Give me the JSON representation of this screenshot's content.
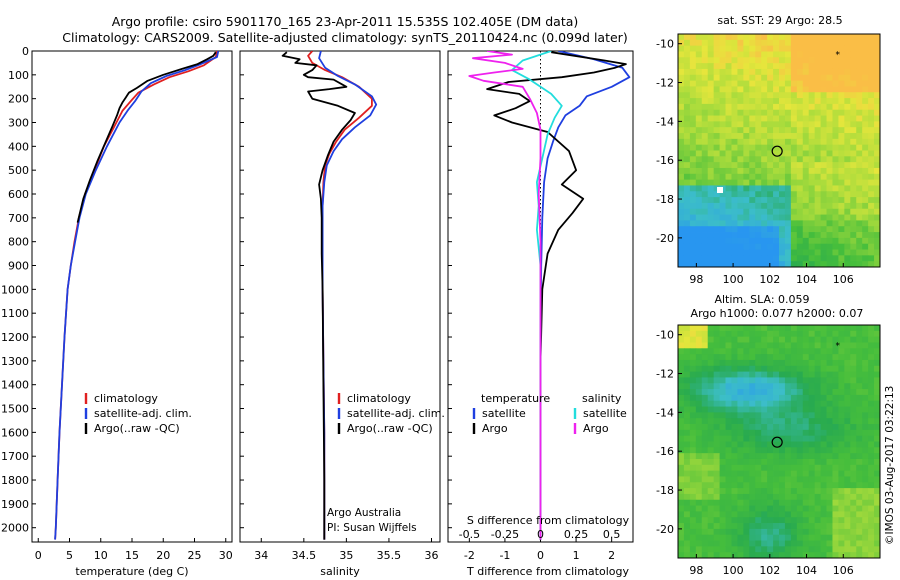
{
  "title_line1": "Argo profile: csiro 5901170_165 23-Apr-2011 15.535S 102.405E (DM data)",
  "title_line2": "Climatology: CARS2009. Satellite-adjusted climatology: synTS_20110424.nc (0.099d later)",
  "side_stamp": "©IMOS 03-Aug-2017 03:22:13",
  "colors": {
    "climatology": "#e02020",
    "satellite": "#1f3fe0",
    "argo": "#000000",
    "sal_satellite": "#22dddd",
    "sal_argo": "#ee22ee"
  },
  "chart_data": [
    {
      "type": "line",
      "id": "temperature",
      "xlabel": "temperature (deg C)",
      "xlim": [
        -1,
        31
      ],
      "xticks": [
        0,
        5,
        10,
        15,
        20,
        25,
        30
      ],
      "ylim": [
        2060,
        0
      ],
      "yticks": [
        0,
        100,
        200,
        300,
        400,
        500,
        600,
        700,
        800,
        900,
        1000,
        1100,
        1200,
        1300,
        1400,
        1500,
        1600,
        1700,
        1800,
        1900,
        2000
      ],
      "legend": [
        "climatology",
        "satellite-adj. clim.",
        "Argo(..raw -QC)"
      ],
      "series": [
        {
          "name": "climatology",
          "color_key": "climatology",
          "points": [
            [
              28.6,
              0
            ],
            [
              28.4,
              25
            ],
            [
              26.5,
              60
            ],
            [
              24,
              85
            ],
            [
              21,
              110
            ],
            [
              18.5,
              140
            ],
            [
              16,
              175
            ],
            [
              14.8,
              210
            ],
            [
              13.5,
              250
            ],
            [
              12.5,
              300
            ],
            [
              10.5,
              400
            ],
            [
              9,
              500
            ],
            [
              7.5,
              600
            ],
            [
              6.5,
              700
            ],
            [
              5.8,
              800
            ],
            [
              5.2,
              900
            ],
            [
              4.7,
              1000
            ],
            [
              4.2,
              1200
            ],
            [
              3.8,
              1400
            ],
            [
              3.4,
              1600
            ],
            [
              3.1,
              1800
            ],
            [
              2.8,
              2000
            ],
            [
              2.7,
              2050
            ]
          ]
        },
        {
          "name": "satellite-adj. clim.",
          "color_key": "satellite",
          "points": [
            [
              28.8,
              0
            ],
            [
              28.6,
              25
            ],
            [
              26,
              55
            ],
            [
              23.5,
              80
            ],
            [
              20.5,
              105
            ],
            [
              18,
              135
            ],
            [
              16.5,
              170
            ],
            [
              15.5,
              210
            ],
            [
              14.3,
              250
            ],
            [
              13,
              300
            ],
            [
              11,
              400
            ],
            [
              9.2,
              500
            ],
            [
              7.6,
              600
            ],
            [
              6.6,
              700
            ],
            [
              5.9,
              800
            ],
            [
              5.2,
              900
            ],
            [
              4.7,
              1000
            ],
            [
              4.2,
              1200
            ],
            [
              3.8,
              1400
            ],
            [
              3.4,
              1600
            ],
            [
              3.1,
              1800
            ],
            [
              2.8,
              2000
            ],
            [
              2.7,
              2050
            ]
          ]
        },
        {
          "name": "Argo(..raw -QC)",
          "color_key": "argo",
          "points": [
            [
              28.4,
              5
            ],
            [
              28,
              20
            ],
            [
              27,
              35
            ],
            [
              25.5,
              55
            ],
            [
              23,
              75
            ],
            [
              20,
              100
            ],
            [
              17.5,
              125
            ],
            [
              15.8,
              155
            ],
            [
              14.5,
              175
            ],
            [
              14,
              195
            ],
            [
              13.5,
              215
            ],
            [
              13,
              240
            ],
            [
              12.6,
              270
            ],
            [
              11.8,
              320
            ],
            [
              10.8,
              380
            ],
            [
              9.5,
              460
            ],
            [
              8.3,
              540
            ],
            [
              7.2,
              620
            ],
            [
              6.3,
              720
            ]
          ]
        }
      ]
    },
    {
      "type": "line",
      "id": "salinity",
      "xlabel": "salinity",
      "xlim": [
        33.75,
        36.1
      ],
      "xticks": [
        34,
        34.5,
        35,
        35.5,
        36
      ],
      "ylim": [
        2060,
        0
      ],
      "legend": [
        "climatology",
        "satellite-adj. clim.",
        "Argo(..raw -QC)"
      ],
      "annotation": [
        "Argo Australia",
        "PI: Susan Wijffels"
      ],
      "series": [
        {
          "name": "climatology",
          "color_key": "climatology",
          "points": [
            [
              34.6,
              0
            ],
            [
              34.55,
              20
            ],
            [
              34.6,
              50
            ],
            [
              34.75,
              80
            ],
            [
              34.95,
              110
            ],
            [
              35.15,
              150
            ],
            [
              35.3,
              200
            ],
            [
              35.3,
              230
            ],
            [
              35.15,
              280
            ],
            [
              34.98,
              330
            ],
            [
              34.88,
              380
            ],
            [
              34.8,
              430
            ],
            [
              34.75,
              480
            ],
            [
              34.73,
              550
            ],
            [
              34.72,
              650
            ],
            [
              34.72,
              800
            ],
            [
              34.72,
              1000
            ],
            [
              34.73,
              1300
            ],
            [
              34.74,
              1600
            ],
            [
              34.74,
              2000
            ],
            [
              34.74,
              2050
            ]
          ]
        },
        {
          "name": "satellite-adj. clim.",
          "color_key": "satellite",
          "points": [
            [
              34.7,
              0
            ],
            [
              34.68,
              30
            ],
            [
              34.75,
              70
            ],
            [
              34.9,
              105
            ],
            [
              35.1,
              140
            ],
            [
              35.3,
              190
            ],
            [
              35.35,
              225
            ],
            [
              35.28,
              270
            ],
            [
              35.1,
              320
            ],
            [
              34.95,
              370
            ],
            [
              34.85,
              420
            ],
            [
              34.77,
              480
            ],
            [
              34.74,
              550
            ],
            [
              34.72,
              650
            ],
            [
              34.72,
              800
            ],
            [
              34.72,
              1000
            ],
            [
              34.73,
              1300
            ],
            [
              34.74,
              1600
            ],
            [
              34.74,
              2000
            ],
            [
              34.74,
              2050
            ]
          ]
        },
        {
          "name": "Argo(..raw -QC)",
          "color_key": "argo",
          "points": [
            [
              34.3,
              5
            ],
            [
              34.25,
              20
            ],
            [
              34.45,
              35
            ],
            [
              34.4,
              50
            ],
            [
              34.65,
              60
            ],
            [
              34.6,
              80
            ],
            [
              34.5,
              100
            ],
            [
              34.55,
              110
            ],
            [
              34.85,
              120
            ],
            [
              35,
              150
            ],
            [
              34.8,
              160
            ],
            [
              34.55,
              170
            ],
            [
              34.6,
              200
            ],
            [
              34.9,
              230
            ],
            [
              35.1,
              260
            ],
            [
              35.05,
              290
            ],
            [
              34.95,
              330
            ],
            [
              34.85,
              380
            ],
            [
              34.78,
              440
            ],
            [
              34.72,
              500
            ],
            [
              34.68,
              560
            ],
            [
              34.7,
              620
            ],
            [
              34.71,
              700
            ],
            [
              34.71,
              850
            ],
            [
              34.72,
              1000
            ],
            [
              34.73,
              1400
            ],
            [
              34.74,
              1800
            ],
            [
              34.74,
              2000
            ],
            [
              34.74,
              2050
            ]
          ]
        }
      ]
    },
    {
      "type": "line",
      "id": "difference",
      "xlabel": "T difference from climatology",
      "xlabel_top": "S difference from climatology",
      "xlim": [
        -2.6,
        2.6
      ],
      "xticks": [
        -2,
        -1,
        0,
        1,
        2
      ],
      "s_xticks_labels": [
        "-0.5",
        "-0.25",
        "0",
        "0.25",
        "0.5"
      ],
      "s_xticks_T": [
        -2,
        -1,
        0,
        1,
        2
      ],
      "ylim": [
        2060,
        0
      ],
      "legend_titles": [
        "temperature",
        "salinity"
      ],
      "legend_temperature": [
        "satellite",
        "Argo"
      ],
      "legend_salinity": [
        "satellite",
        "Argo"
      ],
      "series": [
        {
          "name": "temperature satellite",
          "color_key": "satellite",
          "points": [
            [
              0.5,
              0
            ],
            [
              1.5,
              35
            ],
            [
              2.3,
              70
            ],
            [
              2.5,
              110
            ],
            [
              2.0,
              150
            ],
            [
              1.3,
              190
            ],
            [
              1.1,
              230
            ],
            [
              0.7,
              270
            ],
            [
              0.5,
              320
            ],
            [
              0.35,
              380
            ],
            [
              0.2,
              450
            ],
            [
              0.1,
              550
            ],
            [
              0.05,
              700
            ],
            [
              0.02,
              900
            ],
            [
              0,
              1200
            ],
            [
              0,
              2050
            ]
          ]
        },
        {
          "name": "temperature Argo",
          "color_key": "argo",
          "points": [
            [
              0.3,
              5
            ],
            [
              1.8,
              40
            ],
            [
              2.4,
              55
            ],
            [
              2.1,
              70
            ],
            [
              1.5,
              90
            ],
            [
              0.6,
              110
            ],
            [
              -0.9,
              130
            ],
            [
              -1.5,
              160
            ],
            [
              -0.6,
              180
            ],
            [
              -0.3,
              210
            ],
            [
              -0.7,
              240
            ],
            [
              -1.3,
              270
            ],
            [
              -0.8,
              300
            ],
            [
              0.2,
              340
            ],
            [
              0.8,
              420
            ],
            [
              1.0,
              500
            ],
            [
              0.6,
              560
            ],
            [
              1.2,
              620
            ],
            [
              0.9,
              680
            ],
            [
              0.5,
              750
            ],
            [
              0.2,
              850
            ],
            [
              0.05,
              1000
            ],
            [
              0,
              1300
            ],
            [
              0,
              2050
            ]
          ]
        },
        {
          "name": "salinity satellite",
          "color_key": "sal_satellite",
          "points": [
            [
              0.3,
              0
            ],
            [
              -0.5,
              40
            ],
            [
              -0.8,
              80
            ],
            [
              -0.3,
              120
            ],
            [
              0.3,
              180
            ],
            [
              0.6,
              230
            ],
            [
              0.4,
              280
            ],
            [
              0.2,
              350
            ],
            [
              0.05,
              450
            ],
            [
              -0.1,
              550
            ],
            [
              -0.05,
              650
            ],
            [
              -0.1,
              750
            ],
            [
              0,
              900
            ],
            [
              0,
              2050
            ]
          ]
        },
        {
          "name": "salinity Argo",
          "color_key": "sal_argo",
          "points": [
            [
              -1.5,
              0
            ],
            [
              -0.8,
              15
            ],
            [
              -1.9,
              30
            ],
            [
              -1.0,
              50
            ],
            [
              -0.5,
              75
            ],
            [
              -1.3,
              90
            ],
            [
              -2.0,
              105
            ],
            [
              -1.6,
              125
            ],
            [
              -0.5,
              150
            ],
            [
              -0.3,
              200
            ],
            [
              -0.1,
              260
            ],
            [
              0,
              330
            ],
            [
              0,
              450
            ],
            [
              -0.05,
              600
            ],
            [
              0,
              800
            ],
            [
              0,
              2050
            ]
          ]
        }
      ]
    },
    {
      "type": "heatmap",
      "id": "sst_map",
      "title": "sat. SST: 29 Argo: 28.5",
      "xlim": [
        97,
        108
      ],
      "ylim": [
        -21.5,
        -9.5
      ],
      "xticks": [
        98,
        100,
        102,
        104,
        106
      ],
      "yticks": [
        -10,
        -12,
        -14,
        -16,
        -18,
        -20
      ],
      "profile_marker": [
        102.4,
        -15.535
      ],
      "star_marker": [
        105.7,
        -10.5
      ]
    },
    {
      "type": "heatmap",
      "id": "sla_map",
      "title_line1": "Altim. SLA: 0.059",
      "title_line2": "Argo h1000: 0.077 h2000: 0.07",
      "xlim": [
        97,
        108
      ],
      "ylim": [
        -21.5,
        -9.5
      ],
      "xticks": [
        98,
        100,
        102,
        104,
        106
      ],
      "yticks": [
        -10,
        -12,
        -14,
        -16,
        -18,
        -20
      ],
      "profile_marker": [
        102.4,
        -15.535
      ],
      "star_marker": [
        105.7,
        -10.5
      ]
    }
  ]
}
